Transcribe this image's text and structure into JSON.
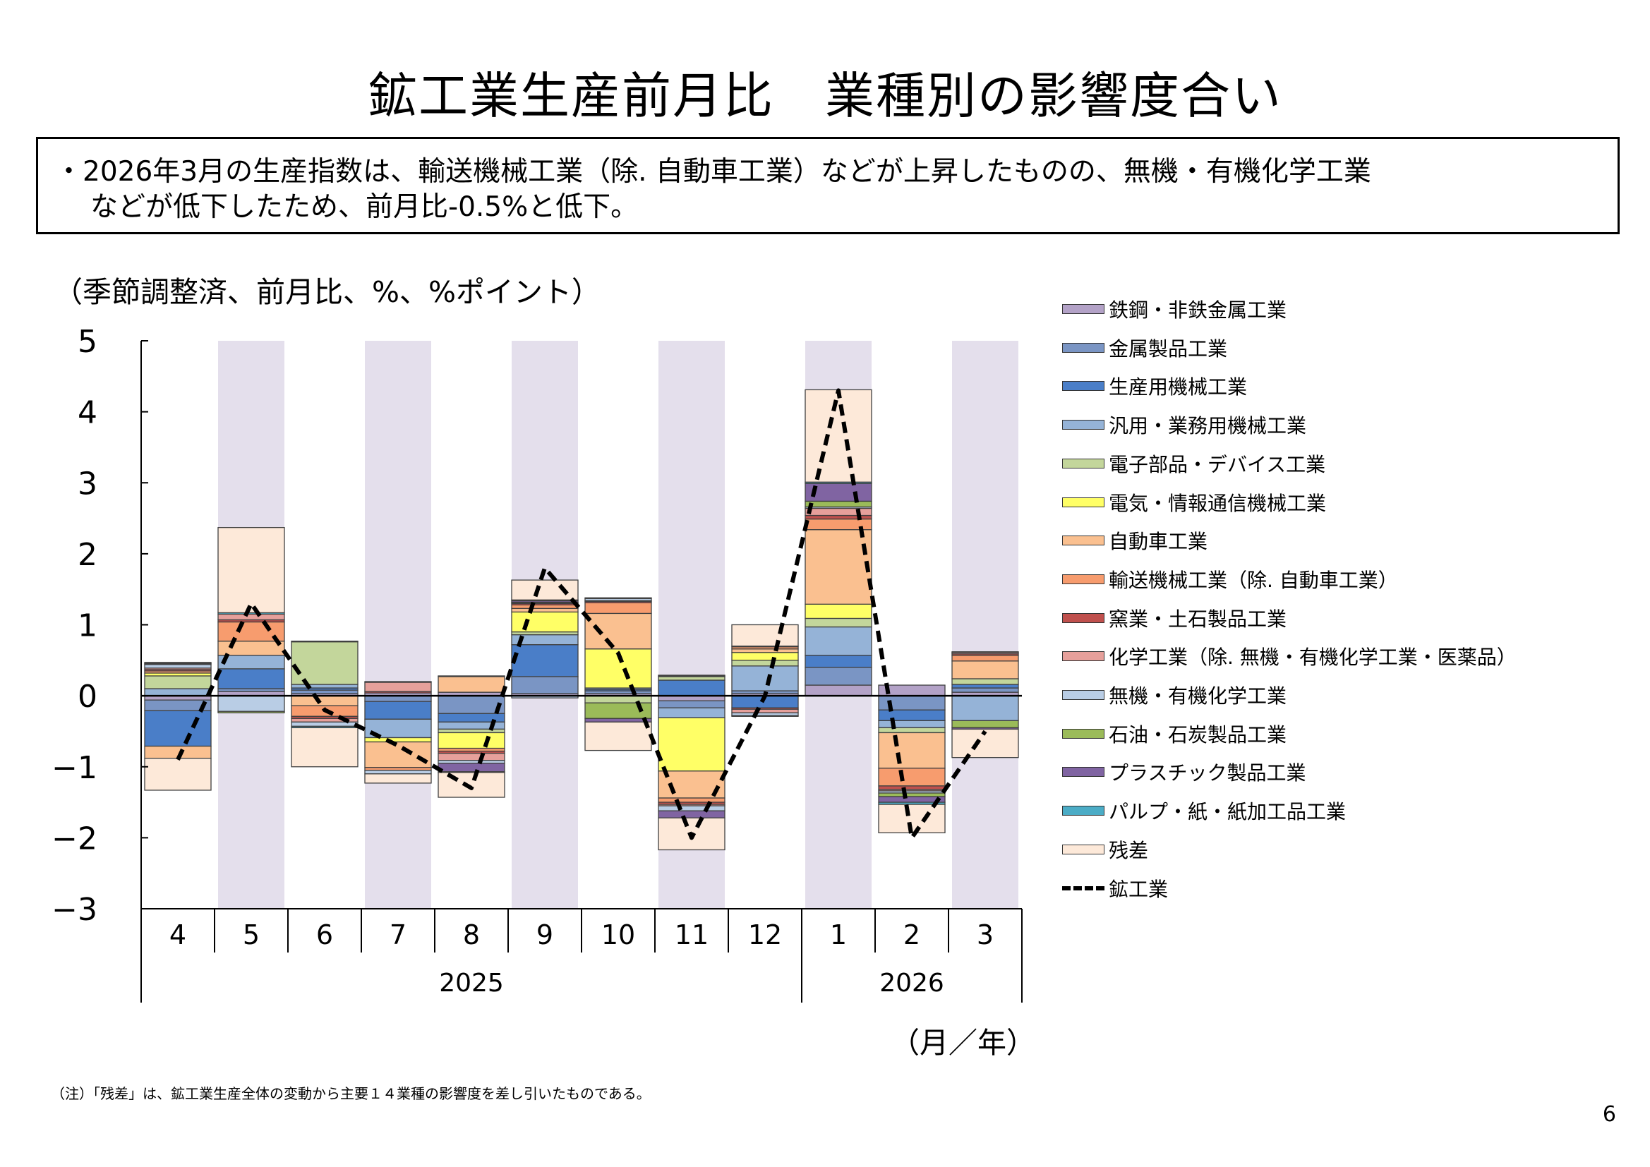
{
  "title": "鉱工業生産前月比　業種別の影響度合い",
  "summary": {
    "line1": "・2026年3月の生産指数は、輸送機械工業（除. 自動車工業）などが上昇したものの、無機・有機化学工業",
    "line2": "などが低下したため、前月比-0.5%と低下。"
  },
  "unit_label": "（季節調整済、前月比、%、%ポイント）",
  "axis_unit": "（月／年）",
  "footnote": "（注）「残差」は、鉱工業生産全体の変動から主要１４業種の影響度を差し引いたものである。",
  "page_number": "6",
  "chart_data": {
    "type": "bar",
    "stacked": true,
    "categories": [
      "4",
      "5",
      "6",
      "7",
      "8",
      "9",
      "10",
      "11",
      "12",
      "1",
      "2",
      "3"
    ],
    "year_groups": [
      {
        "label": "2025",
        "span": 9
      },
      {
        "label": "2026",
        "span": 3
      }
    ],
    "ylim": [
      -3,
      5
    ],
    "yticks": [
      "5",
      "4",
      "3",
      "2",
      "1",
      "0",
      "−1",
      "−2",
      "−3"
    ],
    "ytick_values": [
      5,
      4,
      3,
      2,
      1,
      0,
      -1,
      -2,
      -3
    ],
    "shaded_categories": [
      "5",
      "7",
      "9",
      "11",
      "1",
      "3"
    ],
    "shade_color": "#e4dfec",
    "series": [
      {
        "name": "鉄鋼・非鉄金属工業",
        "color": "#b3a2c7",
        "values": [
          -0.06,
          0.06,
          0.03,
          0.04,
          0.05,
          0.03,
          0.03,
          -0.07,
          0.03,
          0.15,
          0.15,
          0.05
        ]
      },
      {
        "name": "金属製品工業",
        "color": "#7a95c4",
        "values": [
          -0.15,
          0.04,
          0.05,
          -0.08,
          -0.25,
          0.24,
          0.04,
          -0.1,
          0.04,
          0.25,
          -0.2,
          0.06
        ]
      },
      {
        "name": "生産用機械工業",
        "color": "#4a7ec8",
        "values": [
          -0.5,
          0.28,
          0.03,
          -0.25,
          -0.12,
          0.45,
          0.02,
          0.22,
          -0.17,
          0.17,
          -0.15,
          0.05
        ]
      },
      {
        "name": "汎用・業務用機械工業",
        "color": "#95b3d7",
        "values": [
          0.1,
          0.19,
          0.05,
          -0.26,
          -0.1,
          0.14,
          0.02,
          -0.14,
          0.35,
          0.4,
          -0.1,
          -0.35
        ]
      },
      {
        "name": "電子部品・デバイス工業",
        "color": "#c3d69b",
        "values": [
          0.18,
          0.0,
          0.6,
          0.0,
          -0.05,
          0.04,
          -0.1,
          0.05,
          0.08,
          0.12,
          -0.07,
          0.08
        ]
      },
      {
        "name": "電気・情報通信機械工業",
        "color": "#ffff66",
        "values": [
          0.04,
          0.0,
          0.0,
          -0.06,
          -0.22,
          0.28,
          0.55,
          -0.75,
          0.11,
          0.2,
          0.0,
          0.0
        ]
      },
      {
        "name": "自動車工業",
        "color": "#fac090",
        "values": [
          -0.17,
          0.2,
          -0.14,
          -0.36,
          0.22,
          0.05,
          0.5,
          -0.38,
          0.05,
          1.05,
          -0.5,
          0.25
        ]
      },
      {
        "name": "輸送機械工業（除. 自動車工業）",
        "color": "#f79c6e",
        "values": [
          0.03,
          0.27,
          -0.15,
          -0.04,
          -0.04,
          0.05,
          0.15,
          -0.06,
          0.03,
          0.15,
          -0.25,
          0.08
        ]
      },
      {
        "name": "窯業・土石製品工業",
        "color": "#c0504d",
        "values": [
          0.02,
          0.03,
          -0.03,
          0.02,
          -0.03,
          0.02,
          0.02,
          -0.03,
          -0.02,
          0.05,
          -0.05,
          0.02
        ]
      },
      {
        "name": "化学工業（除. 無機・有機化学工業・医薬品）",
        "color": "#e6a09b",
        "values": [
          0.02,
          0.08,
          -0.05,
          0.13,
          -0.1,
          0.01,
          0.01,
          -0.02,
          -0.05,
          0.1,
          -0.02,
          0.02
        ]
      },
      {
        "name": "無機・有機化学工業",
        "color": "#b9cde5",
        "values": [
          0.05,
          -0.22,
          -0.06,
          -0.05,
          -0.04,
          -0.03,
          0.03,
          -0.07,
          -0.04,
          0.02,
          -0.03,
          0.0
        ]
      },
      {
        "name": "石油・石炭製品工業",
        "color": "#9bbb59",
        "values": [
          0.01,
          -0.02,
          0.01,
          0.0,
          0.01,
          0.01,
          -0.22,
          0.01,
          0.01,
          0.08,
          -0.05,
          -0.1
        ]
      },
      {
        "name": "プラスチック製品工業",
        "color": "#8064a2",
        "values": [
          0.01,
          0.0,
          0.0,
          0.0,
          -0.12,
          0.02,
          -0.05,
          -0.1,
          0.0,
          0.25,
          -0.08,
          -0.02
        ]
      },
      {
        "name": "パルプ・紙・紙加工品工業",
        "color": "#4bacc6",
        "values": [
          0.01,
          0.02,
          -0.02,
          0.01,
          -0.01,
          0.01,
          0.01,
          0.01,
          -0.01,
          0.02,
          -0.03,
          0.01
        ]
      },
      {
        "name": "残差",
        "color": "#fde9d9",
        "values": [
          -0.45,
          1.2,
          -0.55,
          -0.13,
          -0.35,
          0.28,
          -0.4,
          -0.45,
          0.3,
          1.3,
          -0.4,
          -0.4
        ]
      }
    ],
    "line": {
      "name": "鉱工業",
      "values": [
        -0.9,
        1.3,
        -0.2,
        -0.7,
        -1.3,
        1.8,
        0.6,
        -2.0,
        0.0,
        4.3,
        -2.0,
        -0.5
      ]
    }
  }
}
